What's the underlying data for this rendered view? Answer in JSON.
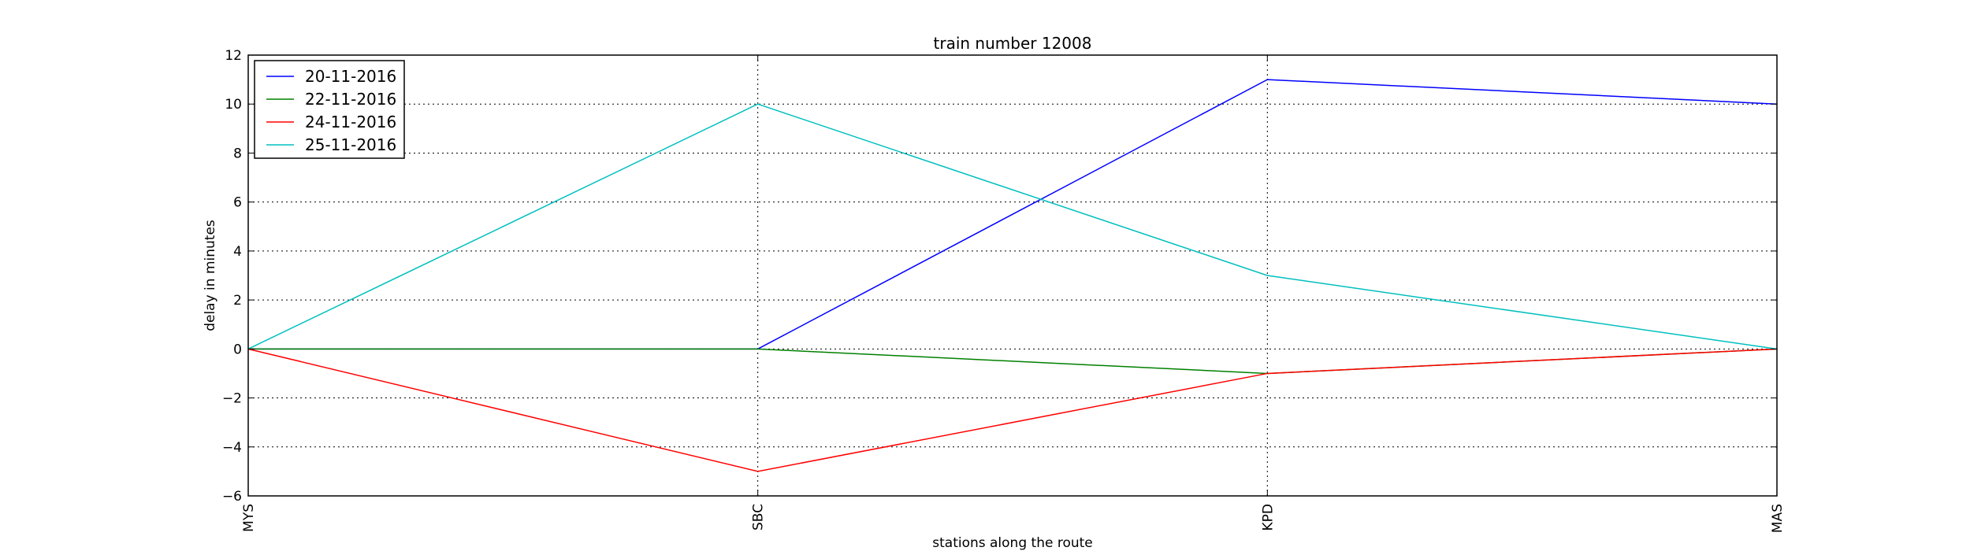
{
  "chart_data": {
    "type": "line",
    "title": "train number 12008",
    "xlabel": "stations along the route",
    "ylabel": "delay in minutes",
    "categories": [
      "MYS",
      "SBC",
      "KPD",
      "MAS"
    ],
    "ylim": [
      -6,
      12
    ],
    "yticks": [
      -6,
      -4,
      -2,
      0,
      2,
      4,
      6,
      8,
      10,
      12
    ],
    "ytick_labels": [
      "−6",
      "−4",
      "−2",
      "0",
      "2",
      "4",
      "6",
      "8",
      "10",
      "12"
    ],
    "grid": true,
    "legend_position": "top-left",
    "series": [
      {
        "name": "20-11-2016",
        "color": "#0000ff",
        "values": [
          0,
          0,
          11,
          10
        ]
      },
      {
        "name": "22-11-2016",
        "color": "#008000",
        "values": [
          0,
          0,
          -1,
          0
        ]
      },
      {
        "name": "24-11-2016",
        "color": "#ff0000",
        "values": [
          0,
          -5,
          -1,
          0
        ]
      },
      {
        "name": "25-11-2016",
        "color": "#00bfbf",
        "values": [
          0,
          10,
          3,
          0
        ]
      }
    ]
  }
}
